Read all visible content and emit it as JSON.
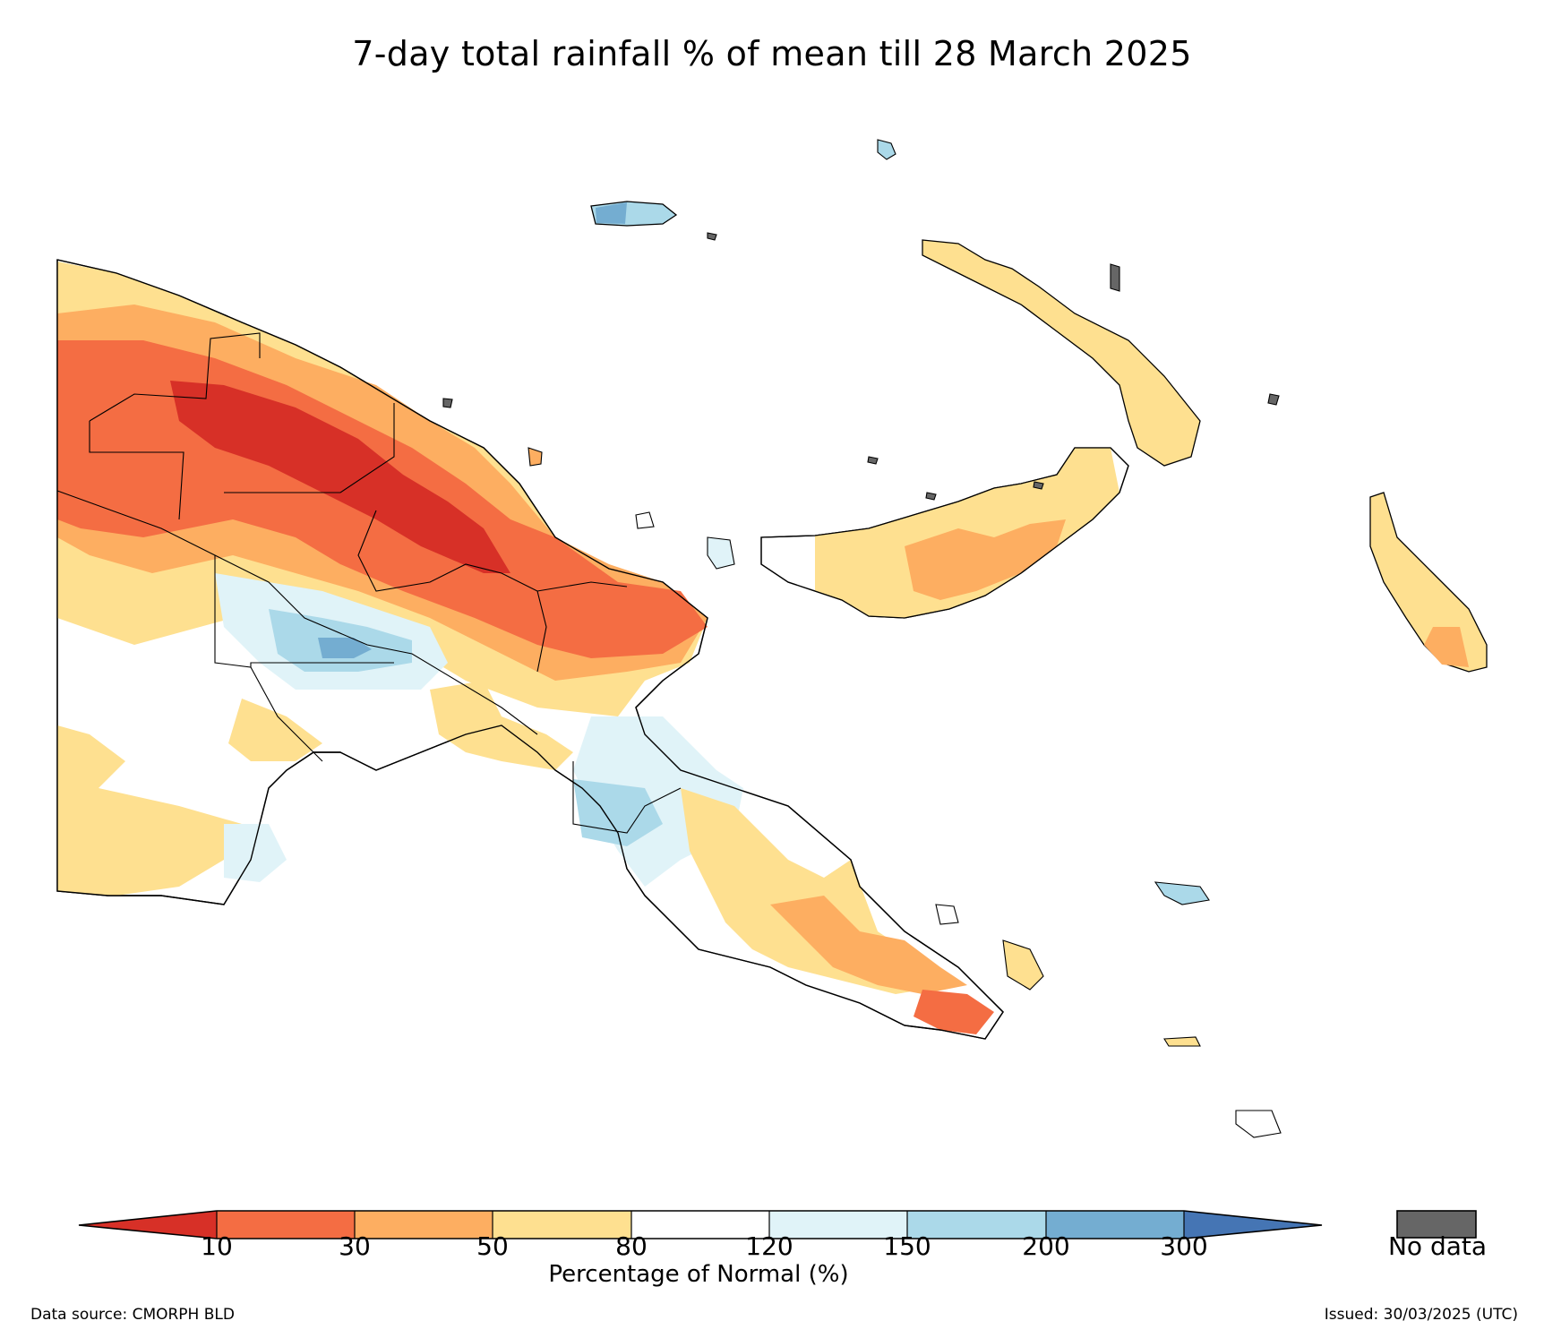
{
  "title": "7-day total rainfall % of mean till 28 March 2025",
  "colorbar": {
    "label": "Percentage of Normal (%)",
    "ticks": [
      "10",
      "30",
      "50",
      "80",
      "120",
      "150",
      "200",
      "300"
    ],
    "colors": [
      "#d73027",
      "#f46d43",
      "#fdae61",
      "#fee090",
      "#ffffff",
      "#e0f3f8",
      "#abd9e9",
      "#74add1",
      "#4575b4"
    ],
    "nodata_label": "No data",
    "nodata_color": "#666666"
  },
  "footer": {
    "source": "Data source: CMORPH BLD",
    "issued": "Issued: 30/03/2025 (UTC)"
  }
}
